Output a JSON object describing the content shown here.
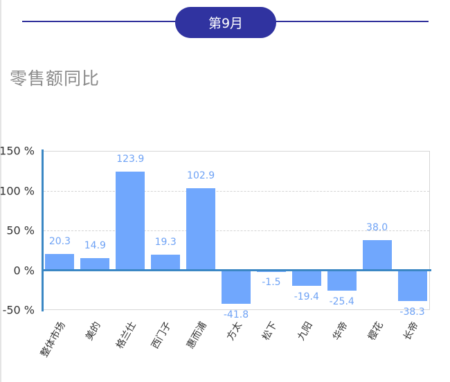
{
  "header": {
    "month_label": "第9月",
    "accent_color": "#3033a0"
  },
  "section": {
    "title": "零售额同比"
  },
  "chart_data": {
    "type": "bar",
    "title": "零售额同比",
    "xlabel": "",
    "ylabel": "",
    "categories": [
      "整体市场",
      "美的",
      "格兰仕",
      "西门子",
      "惠而浦",
      "方太",
      "松下",
      "九阳",
      "华帝",
      "樱花",
      "长帝"
    ],
    "values": [
      20.3,
      14.9,
      123.9,
      19.3,
      102.9,
      -41.8,
      -1.5,
      -19.4,
      -25.4,
      38.0,
      -38.3
    ],
    "value_labels": [
      "20.3",
      "14.9",
      "123.9",
      "19.3",
      "102.9",
      "-41.8",
      "-1.5",
      "-19.4",
      "-25.4",
      "38.0",
      "-38.3"
    ],
    "ylim": [
      -50,
      150
    ],
    "yticks": [
      -50,
      0,
      50,
      100,
      150
    ],
    "ytick_labels": [
      "-50 %",
      "0 %",
      "50 %",
      "100 %",
      "150 %"
    ],
    "grid": "dashed horizontal at 50 and 100",
    "legend": "none",
    "bar_color": "#70a7fd",
    "axis_color": "#3b87c4",
    "label_color": "#6ea2f5"
  }
}
